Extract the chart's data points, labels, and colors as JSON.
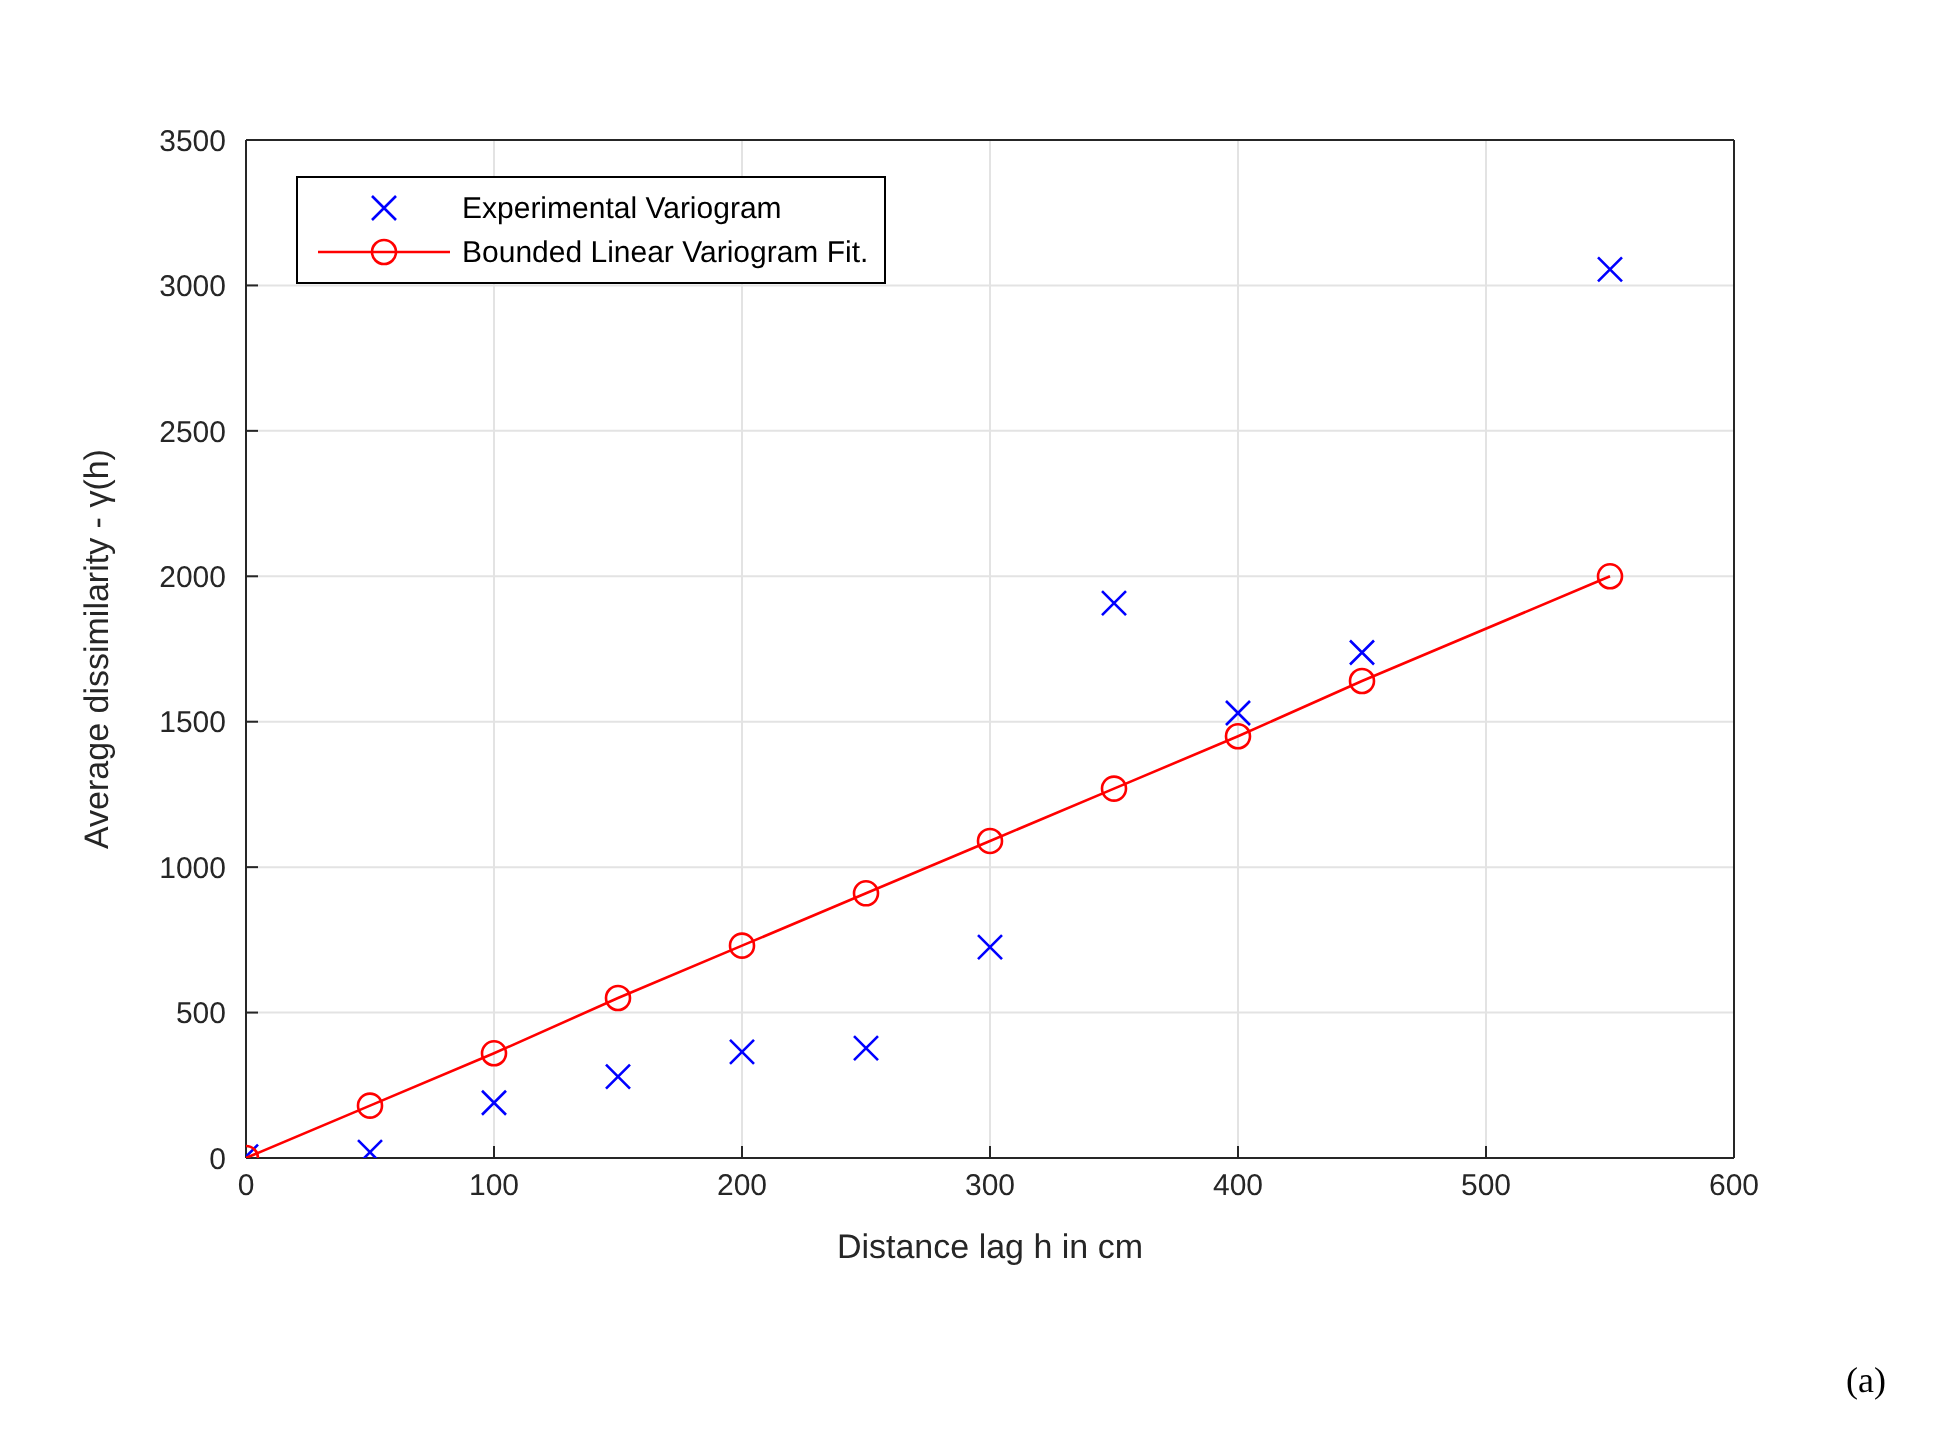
{
  "chart_data": {
    "type": "scatter",
    "xlabel": "Distance lag h in cm",
    "ylabel": "Average dissimilarity - γ(h)",
    "xlim": [
      0,
      600
    ],
    "xticks": [
      0,
      100,
      200,
      300,
      400,
      500,
      600
    ],
    "ylim": [
      0,
      3500
    ],
    "yticks": [
      0,
      500,
      1000,
      1500,
      2000,
      2500,
      3000,
      3500
    ],
    "grid": true,
    "legend": "top left",
    "annotations": [
      "(a)"
    ],
    "series": [
      {
        "name": "Experimental Variogram",
        "marker": "cross",
        "color": "#0000ff",
        "x": [
          0,
          50,
          100,
          150,
          200,
          250,
          300,
          350,
          400,
          450,
          550
        ],
        "values": [
          5,
          20,
          190,
          280,
          365,
          378,
          725,
          1908,
          1530,
          1738,
          3055
        ]
      },
      {
        "name": "Bounded Linear Variogram Fit.",
        "type": "line",
        "marker": "circle",
        "line_style": "solid",
        "color": "#ff0000",
        "x": [
          0,
          50,
          100,
          150,
          200,
          250,
          300,
          350,
          400,
          450,
          550
        ],
        "values": [
          0,
          180,
          360,
          550,
          730,
          910,
          1090,
          1270,
          1450,
          1640,
          2000
        ]
      }
    ]
  }
}
